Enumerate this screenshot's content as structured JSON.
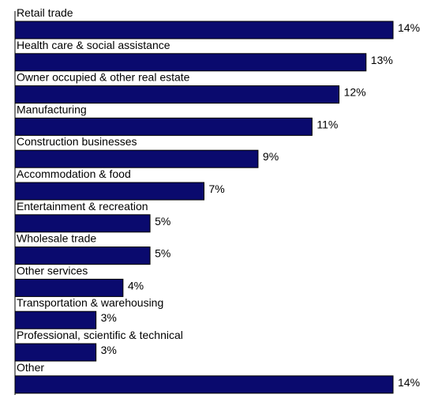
{
  "chart_data": {
    "type": "bar",
    "orientation": "horizontal",
    "title": "",
    "xlabel": "",
    "ylabel": "",
    "categories": [
      "Retail trade",
      "Health care & social assistance",
      "Owner occupied & other real estate",
      "Manufacturing",
      "Construction businesses",
      "Accommodation & food",
      "Entertainment & recreation",
      "Wholesale trade",
      "Other services",
      "Transportation & warehousing",
      "Professional, scientific & technical",
      "Other"
    ],
    "values": [
      14,
      13,
      12,
      11,
      9,
      7,
      5,
      5,
      4,
      3,
      3,
      14
    ],
    "value_labels": [
      "14%",
      "13%",
      "12%",
      "11%",
      "9%",
      "7%",
      "5%",
      "5%",
      "4%",
      "3%",
      "3%",
      "14%"
    ],
    "xlim": [
      0,
      14
    ],
    "grid": false,
    "legend": "none",
    "bar_color": "#0a0a6e",
    "bar_border_color": "#000000"
  }
}
